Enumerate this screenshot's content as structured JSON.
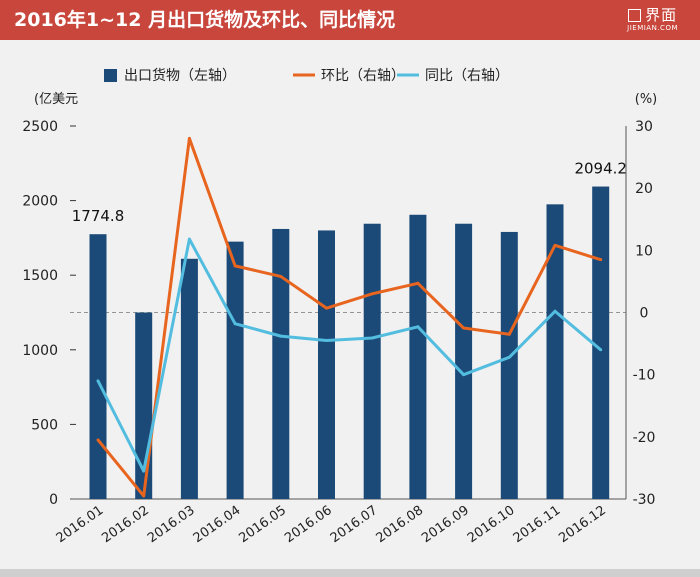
{
  "header": {
    "title": "2016年1~12 月出口货物及环比、同比情况",
    "logo_text": "界面",
    "logo_sub": "JIEMIAN.COM"
  },
  "colors": {
    "header_bg": "#c8463c",
    "bar": "#1b4a78",
    "mom_line": "#e8651f",
    "yoy_line": "#53bde0"
  },
  "chart_data": {
    "type": "bar",
    "categories": [
      "2016.01",
      "2016.02",
      "2016.03",
      "2016.04",
      "2016.05",
      "2016.06",
      "2016.07",
      "2016.08",
      "2016.09",
      "2016.10",
      "2016.11",
      "2016.12"
    ],
    "y_left_label": "(亿美元",
    "y_right_label": "(%)",
    "y_left_lim": [
      0,
      2500
    ],
    "y_left_ticks": [
      "0",
      "500",
      "1000",
      "1500",
      "2000",
      "2500"
    ],
    "y_right_lim": [
      -30,
      30
    ],
    "y_right_ticks": [
      "-30",
      "-20",
      "-10",
      "0",
      "10",
      "20",
      "30"
    ],
    "legend": {
      "position": "top",
      "items": [
        "出口货物（左轴）",
        "环比（右轴）",
        "同比（右轴）"
      ]
    },
    "bar_series": {
      "name": "出口货物（左轴）",
      "axis": "left",
      "values": [
        1774.8,
        1250,
        1610,
        1725,
        1810,
        1800,
        1845,
        1905,
        1845,
        1790,
        1975,
        2094.2
      ]
    },
    "line_series": [
      {
        "name": "环比（右轴）",
        "axis": "right",
        "values": [
          -20.5,
          -29.5,
          28,
          7.5,
          5.8,
          0.7,
          3,
          4.7,
          -2.5,
          -3.5,
          10.8,
          8.5
        ]
      },
      {
        "name": "同比（右轴）",
        "axis": "right",
        "values": [
          -11,
          -25.5,
          11.8,
          -1.8,
          -3.8,
          -4.5,
          -4.1,
          -2.3,
          -10,
          -7.2,
          0.2,
          -6
        ]
      }
    ],
    "annotations": [
      {
        "index": 0,
        "text": "1774.8"
      },
      {
        "index": 11,
        "text": "2094.2"
      }
    ],
    "zero_reference_line": "dashed"
  }
}
